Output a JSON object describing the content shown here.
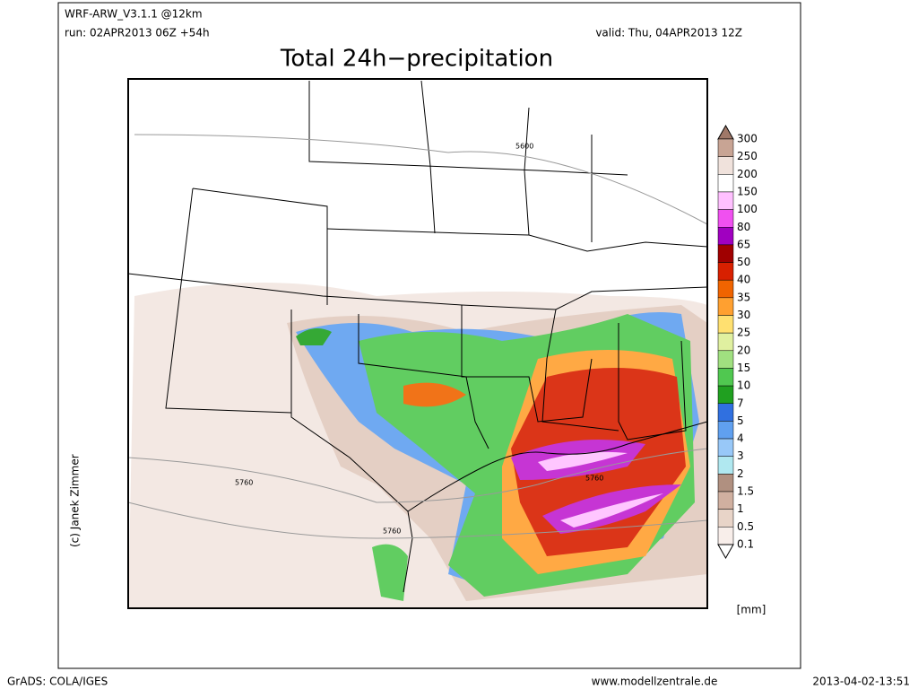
{
  "header": {
    "model": "WRF-ARW_V3.1.1 @12km",
    "run": "run: 02APR2013 06Z +54h",
    "valid": "valid: Thu, 04APR2013 12Z"
  },
  "title": "Total 24h−precipitation",
  "map": {
    "contour_labels": [
      "5600",
      "5760",
      "5760",
      "5760"
    ],
    "credit": "(c) Janek Zimmer"
  },
  "legend": {
    "labels": [
      "300",
      "250",
      "200",
      "150",
      "100",
      "80",
      "65",
      "50",
      "40",
      "35",
      "30",
      "25",
      "20",
      "15",
      "10",
      "7",
      "5",
      "4",
      "3",
      "2",
      "1.5",
      "1",
      "0.5",
      "0.1"
    ],
    "colors": [
      "#a07868",
      "#c8a494",
      "#f0e2dc",
      "#ffffff",
      "#ffc0ff",
      "#f050f0",
      "#a000c0",
      "#a00000",
      "#d82000",
      "#f06400",
      "#ffa030",
      "#ffe070",
      "#e0f0a0",
      "#a0e080",
      "#50c850",
      "#20a020",
      "#3070e0",
      "#60a0f0",
      "#98c8f8",
      "#b0e8f0",
      "#b09080",
      "#d0b0a0",
      "#e8d4c8",
      "#f8eeea",
      "#ffffff"
    ],
    "unit": "[mm]"
  },
  "footer": {
    "left": "GrADS: COLA/IGES",
    "center": "www.modellzentrale.de",
    "right": "2013-04-02-13:51"
  }
}
